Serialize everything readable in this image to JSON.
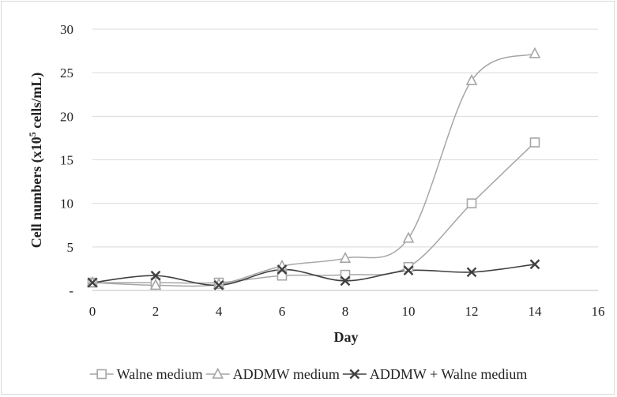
{
  "chart_data": {
    "type": "line",
    "title": "",
    "xlabel": "Day",
    "ylabel_main": "Cell numbers (x10",
    "ylabel_sup": "5",
    "ylabel_rest": " cells/mL)",
    "xlim": [
      0,
      16
    ],
    "ylim": [
      0,
      30
    ],
    "x_ticks": [
      "0",
      "2",
      "4",
      "6",
      "8",
      "10",
      "12",
      "14",
      "16"
    ],
    "y_ticks": [
      "-",
      "5",
      "10",
      "15",
      "20",
      "25",
      "30"
    ],
    "grid": "horizontal",
    "legend_position": "bottom",
    "x": [
      0,
      2,
      4,
      6,
      8,
      10,
      12,
      14
    ],
    "series": [
      {
        "name": "Walne medium",
        "marker": "square",
        "color": "#a6a6a6",
        "values": [
          0.9,
          0.9,
          0.9,
          1.7,
          1.8,
          2.7,
          10.0,
          17.0
        ]
      },
      {
        "name": "ADDMW medium",
        "marker": "triangle",
        "color": "#a6a6a6",
        "values": [
          0.9,
          0.6,
          0.7,
          2.8,
          3.7,
          6.0,
          24.1,
          27.2
        ]
      },
      {
        "name": "ADDMW + Walne medium",
        "marker": "x",
        "color": "#404040",
        "values": [
          0.9,
          1.7,
          0.6,
          2.4,
          1.1,
          2.3,
          2.1,
          3.0
        ]
      }
    ]
  }
}
